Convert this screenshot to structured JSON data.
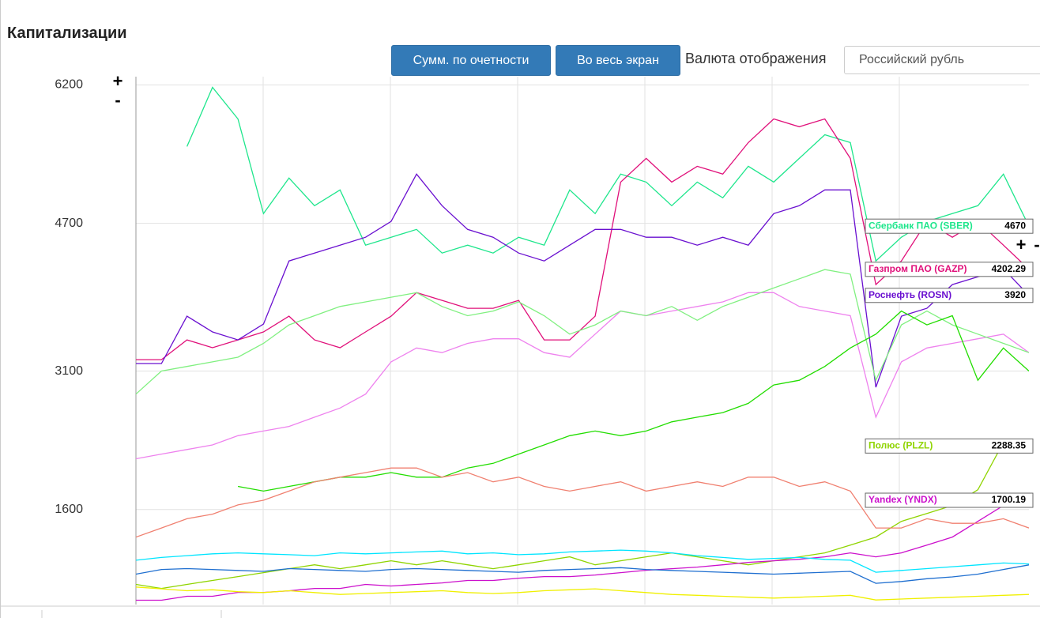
{
  "header": {
    "title": "Капитализации"
  },
  "toolbar": {
    "sum_button": "Сумм. по очетности",
    "fullscreen_button": "Во весь экран",
    "currency_label": "Валюта отображения",
    "currency_value": "Российский рубль"
  },
  "zoom": {
    "plus": "+",
    "minus": "-"
  },
  "chart_data": {
    "type": "line",
    "ylim": [
      570,
      6290
    ],
    "yticks": [
      1600,
      3100,
      4700,
      6200
    ],
    "grid": true,
    "series": [
      {
        "name": "Сбербанк ПАО (SBER)",
        "color": "#1ee68c",
        "values": [
          null,
          null,
          5533,
          6174,
          5832,
          4806,
          5191,
          4892,
          5063,
          4464,
          4550,
          4635,
          4379,
          4464,
          4379,
          4550,
          4464,
          5063,
          4806,
          5234,
          5148,
          4892,
          5148,
          4977,
          5319,
          5148,
          5405,
          5661,
          5576,
          4293,
          4550,
          4721,
          4806,
          4892,
          5234,
          4670
        ]
      },
      {
        "name": "Газпром ПАО (GAZP)",
        "color": "#e0107a",
        "values": [
          3224,
          3224,
          3438,
          3353,
          3438,
          3524,
          3695,
          3438,
          3353,
          3524,
          3695,
          3951,
          3866,
          3780,
          3780,
          3866,
          3438,
          3438,
          3695,
          5148,
          5405,
          5148,
          5319,
          5234,
          5576,
          5832,
          5747,
          5832,
          5405,
          4037,
          4293,
          4721,
          4550,
          4721,
          4464,
          4202.29
        ]
      },
      {
        "name": "Роснефть (ROSN)",
        "color": "#6a10d0",
        "values": [
          3182,
          3182,
          3695,
          3524,
          3438,
          3609,
          4293,
          4379,
          4464,
          4550,
          4721,
          5234,
          4892,
          4635,
          4550,
          4379,
          4293,
          4464,
          4635,
          4635,
          4550,
          4550,
          4464,
          4550,
          4464,
          4806,
          4892,
          5063,
          5063,
          2925,
          3695,
          3780,
          4037,
          4122,
          4208,
          3920
        ]
      },
      {
        "name": "Полюс (PLZL)",
        "color": "#8fd400",
        "values": [
          788,
          745,
          788,
          831,
          873,
          916,
          959,
          1001,
          959,
          1001,
          1044,
          1001,
          1044,
          1001,
          959,
          1001,
          1044,
          1087,
          1001,
          1044,
          1087,
          1130,
          1087,
          1044,
          1001,
          1044,
          1087,
          1130,
          1215,
          1301,
          1472,
          1557,
          1643,
          1814,
          2327,
          2288.35
        ]
      },
      {
        "name": "Yandex (YNDX)",
        "color": "#cc10cc",
        "values": [
          617,
          617,
          660,
          660,
          702,
          702,
          719,
          745,
          745,
          788,
          771,
          788,
          805,
          831,
          831,
          856,
          873,
          873,
          890,
          916,
          942,
          959,
          976,
          1001,
          1027,
          1044,
          1061,
          1087,
          1130,
          1087,
          1130,
          1215,
          1301,
          1472,
          1643,
          1700.19
        ]
      },
      {
        "color": "#ee82ee",
        "values": [
          2150,
          2200,
          2250,
          2300,
          2400,
          2450,
          2500,
          2600,
          2700,
          2850,
          3200,
          3350,
          3300,
          3400,
          3450,
          3450,
          3300,
          3250,
          3500,
          3750,
          3700,
          3750,
          3800,
          3850,
          3950,
          3950,
          3800,
          3750,
          3700,
          2600,
          3200,
          3350,
          3400,
          3450,
          3500,
          3300
        ]
      },
      {
        "color": "#80f080",
        "values": [
          2850,
          3100,
          3150,
          3200,
          3250,
          3400,
          3600,
          3700,
          3800,
          3850,
          3900,
          3950,
          3800,
          3700,
          3750,
          3850,
          3700,
          3500,
          3600,
          3750,
          3700,
          3800,
          3650,
          3800,
          3900,
          4000,
          4100,
          4200,
          4150,
          3000,
          3600,
          3750,
          3600,
          3500,
          3400,
          3300
        ]
      },
      {
        "color": "#22dd00",
        "values": [
          null,
          null,
          null,
          null,
          1850,
          1800,
          1850,
          1900,
          1950,
          1950,
          2000,
          1950,
          1950,
          2050,
          2100,
          2200,
          2300,
          2400,
          2450,
          2400,
          2450,
          2550,
          2600,
          2650,
          2750,
          2950,
          3000,
          3150,
          3350,
          3500,
          3750,
          3600,
          3700,
          3000,
          3350,
          3100
        ]
      },
      {
        "color": "#f08070",
        "values": [
          1300,
          1400,
          1500,
          1550,
          1650,
          1700,
          1800,
          1900,
          1950,
          2000,
          2050,
          2050,
          1950,
          2000,
          1900,
          1950,
          1850,
          1800,
          1850,
          1900,
          1800,
          1850,
          1900,
          1850,
          1950,
          1950,
          1850,
          1900,
          1800,
          1400,
          1400,
          1500,
          1450,
          1450,
          1500,
          1400
        ]
      },
      {
        "color": "#00e5ff",
        "values": [
          1050,
          1080,
          1100,
          1120,
          1130,
          1120,
          1110,
          1100,
          1130,
          1120,
          1130,
          1140,
          1150,
          1120,
          1130,
          1110,
          1120,
          1140,
          1150,
          1160,
          1150,
          1130,
          1100,
          1080,
          1060,
          1070,
          1080,
          1060,
          1050,
          920,
          940,
          960,
          980,
          1000,
          1020,
          1010
        ]
      },
      {
        "color": "#1f6fd0",
        "values": [
          900,
          950,
          960,
          950,
          940,
          930,
          960,
          950,
          940,
          930,
          950,
          960,
          950,
          940,
          930,
          920,
          940,
          950,
          960,
          970,
          950,
          940,
          930,
          920,
          910,
          900,
          910,
          920,
          930,
          800,
          820,
          850,
          870,
          900,
          950,
          1000
        ]
      },
      {
        "color": "#f0f000",
        "values": [
          760,
          740,
          720,
          730,
          710,
          700,
          720,
          700,
          680,
          690,
          700,
          710,
          720,
          700,
          690,
          700,
          720,
          730,
          740,
          720,
          700,
          680,
          670,
          660,
          650,
          640,
          650,
          660,
          670,
          620,
          630,
          640,
          650,
          660,
          670,
          680
        ]
      }
    ]
  }
}
